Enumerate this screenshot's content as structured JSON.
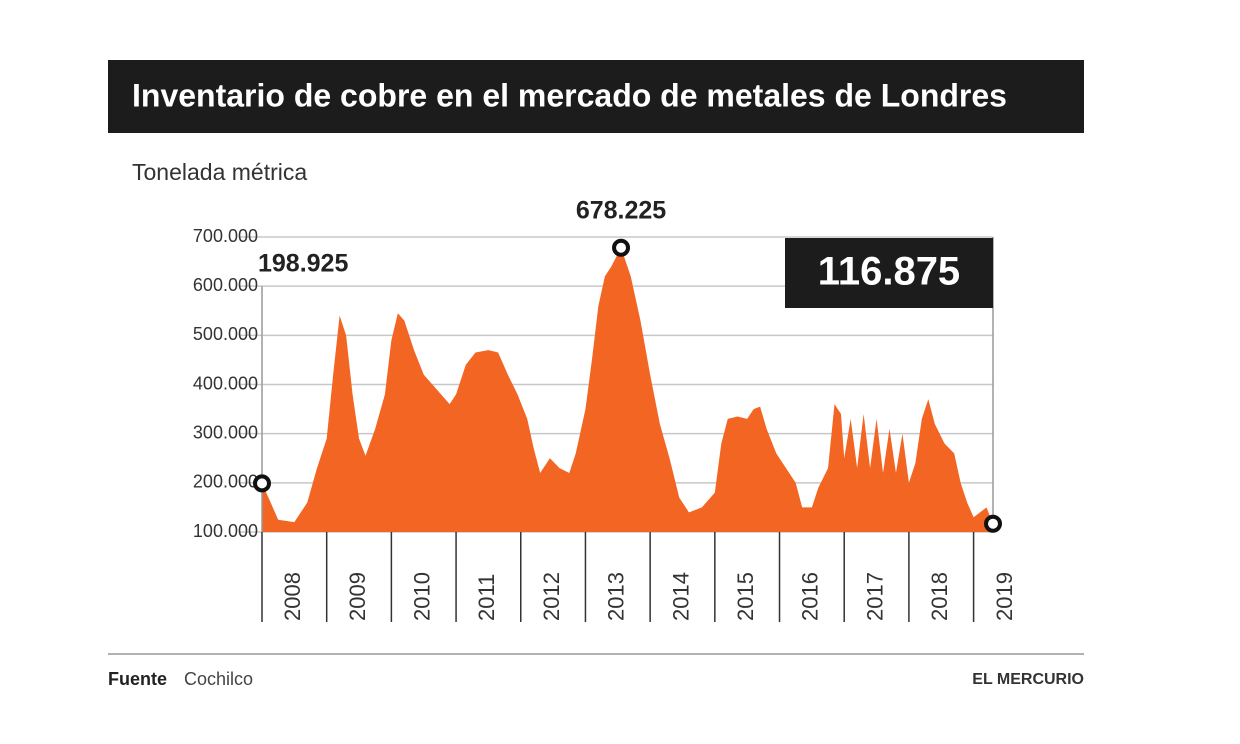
{
  "chart_data": {
    "type": "area",
    "title": "Inventario de cobre en el mercado de metales de Londres",
    "subtitle": "Tonelada métrica",
    "color": "#f26522",
    "x": [
      2008,
      2008.1,
      2008.25,
      2008.5,
      2008.7,
      2008.85,
      2009,
      2009.1,
      2009.2,
      2009.3,
      2009.4,
      2009.5,
      2009.6,
      2009.75,
      2009.9,
      2010,
      2010.1,
      2010.2,
      2010.35,
      2010.5,
      2010.7,
      2010.9,
      2011,
      2011.15,
      2011.3,
      2011.5,
      2011.65,
      2011.8,
      2011.95,
      2012.1,
      2012.2,
      2012.3,
      2012.45,
      2012.6,
      2012.75,
      2012.85,
      2013,
      2013.1,
      2013.2,
      2013.3,
      2013.4,
      2013.55,
      2013.7,
      2013.85,
      2014,
      2014.15,
      2014.3,
      2014.45,
      2014.6,
      2014.8,
      2015,
      2015.1,
      2015.2,
      2015.35,
      2015.5,
      2015.6,
      2015.7,
      2015.8,
      2015.95,
      2016.1,
      2016.25,
      2016.35,
      2016.5,
      2016.6,
      2016.75,
      2016.85,
      2016.95,
      2017,
      2017.1,
      2017.2,
      2017.3,
      2017.4,
      2017.5,
      2017.6,
      2017.7,
      2017.8,
      2017.9,
      2018,
      2018.1,
      2018.2,
      2018.3,
      2018.4,
      2018.55,
      2018.7,
      2018.8,
      2018.9,
      2019,
      2019.1,
      2019.2,
      2019.3
    ],
    "values": [
      198925,
      170000,
      125000,
      120000,
      160000,
      230000,
      290000,
      420000,
      540000,
      500000,
      380000,
      290000,
      255000,
      310000,
      380000,
      490000,
      545000,
      530000,
      470000,
      420000,
      390000,
      360000,
      380000,
      440000,
      465000,
      470000,
      465000,
      420000,
      380000,
      330000,
      270000,
      220000,
      250000,
      230000,
      220000,
      260000,
      350000,
      450000,
      560000,
      620000,
      640000,
      678225,
      620000,
      530000,
      420000,
      320000,
      250000,
      170000,
      140000,
      150000,
      180000,
      280000,
      330000,
      335000,
      330000,
      350000,
      355000,
      310000,
      260000,
      230000,
      200000,
      150000,
      150000,
      190000,
      230000,
      360000,
      340000,
      250000,
      330000,
      230000,
      340000,
      230000,
      330000,
      220000,
      310000,
      220000,
      300000,
      200000,
      240000,
      330000,
      370000,
      320000,
      280000,
      260000,
      200000,
      160000,
      130000,
      140000,
      150000,
      116875
    ],
    "xlim": [
      2008,
      2019.3
    ],
    "xticks": [
      2008,
      2009,
      2010,
      2011,
      2012,
      2013,
      2014,
      2015,
      2016,
      2017,
      2018,
      2019
    ],
    "ylim": [
      100000,
      700000
    ],
    "yticks": [
      {
        "value": 100000,
        "label": "100.000"
      },
      {
        "value": 200000,
        "label": "200.000"
      },
      {
        "value": 300000,
        "label": "300.000"
      },
      {
        "value": 400000,
        "label": "400.000"
      },
      {
        "value": 500000,
        "label": "500.000"
      },
      {
        "value": 600000,
        "label": "600.000"
      },
      {
        "value": 700000,
        "label": "700.000"
      }
    ],
    "grid": true,
    "annotations": [
      {
        "x": 2008,
        "y": 198925,
        "label": "198.925"
      },
      {
        "x": 2013.55,
        "y": 678225,
        "label": "678.225"
      },
      {
        "x": 2019.3,
        "y": 116875,
        "label": "116.875"
      }
    ],
    "source_label": "Fuente",
    "source": "Cochilco",
    "credit": "EL MERCURIO"
  }
}
